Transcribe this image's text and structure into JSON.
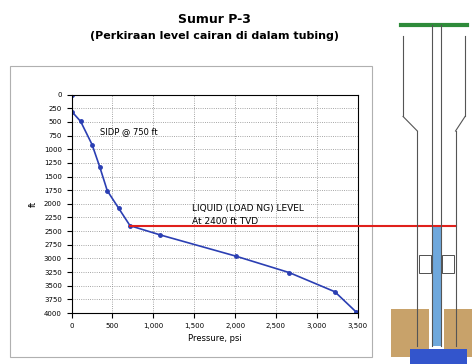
{
  "chart_data": {
    "type": "line",
    "title": "Sumur P-3",
    "subtitle": "(Perkiraan level cairan di dalam tubing)",
    "x_label": "Pressure, psi",
    "y_label": "ft",
    "x": [
      0,
      9,
      111,
      251,
      344,
      437,
      576,
      715,
      1086,
      2014,
      2664,
      3220,
      3480
    ],
    "values": [
      0,
      320,
      490,
      915,
      1320,
      1760,
      2080,
      2400,
      2570,
      2960,
      3260,
      3610,
      3980
    ],
    "color": "#2b3fb3",
    "marker": "o",
    "line_style": "solid",
    "xlim": [
      0,
      3500
    ],
    "xticks": [
      0,
      500,
      {
        "value": 1000,
        "label": "1,000"
      },
      {
        "value": 1500,
        "label": "1,500"
      },
      {
        "value": 2000,
        "label": "2,000"
      },
      {
        "value": 2500,
        "label": "2,500"
      },
      {
        "value": 3000,
        "label": "3,000"
      },
      {
        "value": 3500,
        "label": "3,500"
      }
    ],
    "ylim": [
      4000,
      0
    ],
    "yticks": [
      0,
      250,
      500,
      750,
      1000,
      1250,
      1500,
      1750,
      2000,
      2250,
      2500,
      2750,
      3000,
      3250,
      3500,
      3750,
      4000
    ],
    "grid": true,
    "liquid_level": 2400,
    "liquid_level_color": "#e0201b",
    "annotations": [
      "SIDP @ 750 ft",
      "LIQUID (LOAD NG) LEVEL",
      "At 2400 ft TVD"
    ]
  }
}
